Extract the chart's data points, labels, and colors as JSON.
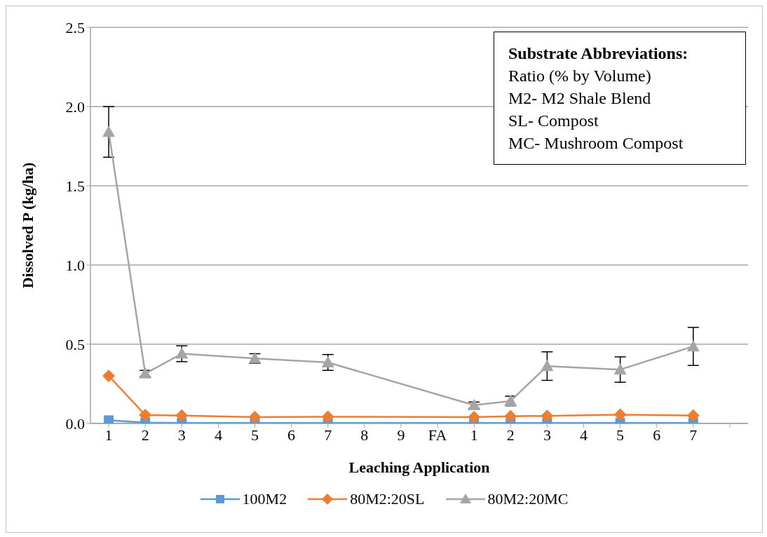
{
  "chart_data": {
    "type": "line",
    "xlabel": "Leaching Application",
    "ylabel": "Dissolved P (kg/ha)",
    "categories": [
      "1",
      "2",
      "3",
      "4",
      "5",
      "6",
      "7",
      "8",
      "9",
      "FA",
      "1",
      "2",
      "3",
      "4",
      "5",
      "6",
      "7",
      null
    ],
    "series": [
      {
        "name": "100M2",
        "color": "#5b9bd5",
        "marker": "square",
        "values": [
          0.02,
          0.005,
          0.003,
          null,
          0.003,
          null,
          0.003,
          null,
          null,
          null,
          0.003,
          0.003,
          0.003,
          null,
          0.003,
          null,
          0.003,
          null
        ]
      },
      {
        "name": "80M2:20SL",
        "color": "#ed7d31",
        "marker": "diamond",
        "values": [
          0.3,
          0.053,
          0.05,
          null,
          0.04,
          null,
          0.042,
          null,
          null,
          null,
          0.04,
          0.045,
          0.048,
          null,
          0.055,
          null,
          0.05,
          null
        ]
      },
      {
        "name": "80M2:20MC",
        "color": "#a5a5a5",
        "marker": "triangle",
        "values": [
          1.84,
          0.315,
          0.44,
          null,
          0.41,
          null,
          0.385,
          null,
          null,
          null,
          0.115,
          0.142,
          0.362,
          null,
          0.34,
          null,
          0.486,
          null
        ],
        "errors": [
          0.16,
          0.02,
          0.05,
          null,
          0.03,
          null,
          0.05,
          null,
          null,
          null,
          0.02,
          0.03,
          0.09,
          null,
          0.08,
          null,
          0.12,
          null
        ]
      }
    ],
    "ylim": [
      0,
      2.5
    ],
    "yticks": [
      {
        "value": 0,
        "label": "0.0"
      },
      {
        "value": 0.5,
        "label": "0.5"
      },
      {
        "value": 1,
        "label": "1.0"
      },
      {
        "value": 1.5,
        "label": "1.5"
      },
      {
        "value": 2,
        "label": "2.0"
      },
      {
        "value": 2.5,
        "label": "2.5"
      }
    ],
    "grid": "y",
    "legend": "bottom",
    "annotations": [
      "Substrate Abbreviations:",
      "Ratio (% by Volume)",
      "M2- M2 Shale Blend",
      "SL- Compost",
      "MC- Mushroom Compost"
    ]
  }
}
